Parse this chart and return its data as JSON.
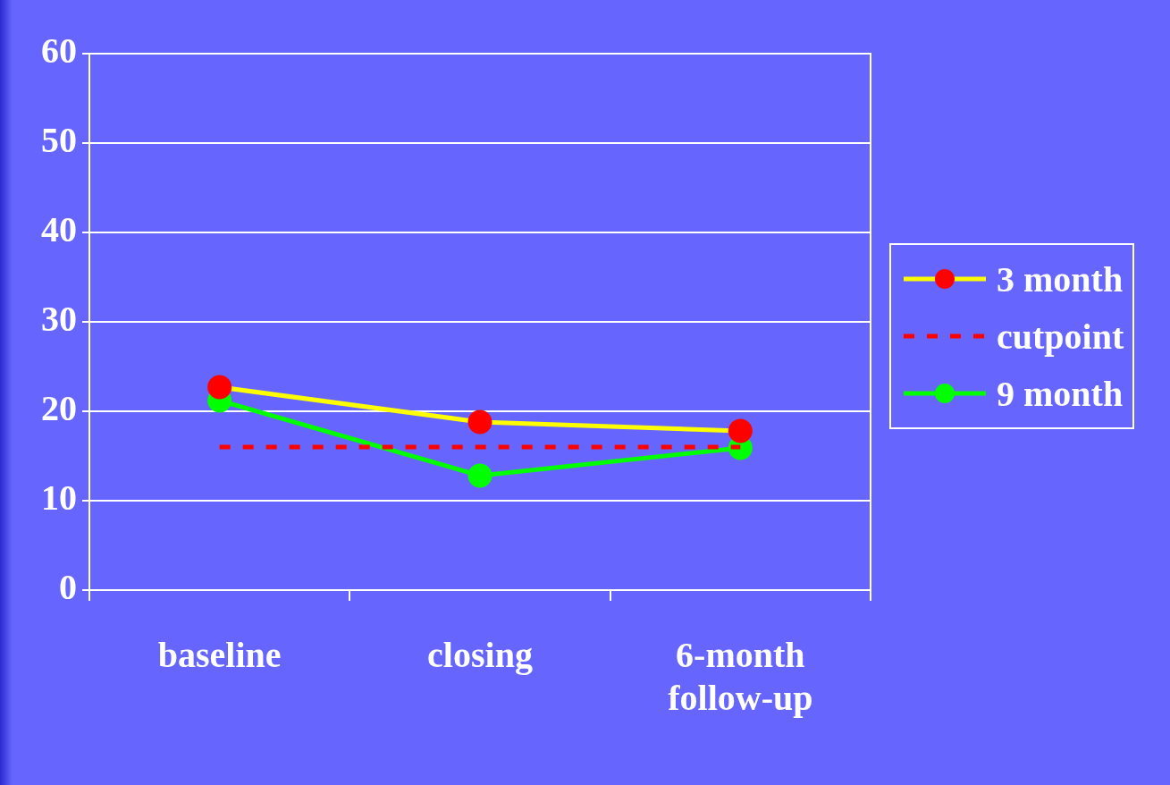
{
  "chart_data": {
    "type": "line",
    "categories": [
      "baseline",
      "closing",
      "6-month\nfollow-up"
    ],
    "series": [
      {
        "name": "3 month",
        "color": "#ffff00",
        "colors": [
          "#ff0000",
          "#ff0000",
          "#ff0000"
        ],
        "marker": "circle",
        "line_style": "solid",
        "values": [
          22.7,
          18.8,
          17.8
        ]
      },
      {
        "name": "cutpoint",
        "color": "#ff0000",
        "marker": "none",
        "line_style": "dashed",
        "values": [
          16,
          16,
          16
        ]
      },
      {
        "name": "9 month",
        "color": "#00ff00",
        "marker": "circle",
        "line_style": "solid",
        "values": [
          21.2,
          12.8,
          15.9
        ]
      }
    ],
    "ylim": [
      0,
      60
    ],
    "yticks": [
      0,
      10,
      20,
      30,
      40,
      50,
      60
    ],
    "grid": "y",
    "legend": "right"
  }
}
